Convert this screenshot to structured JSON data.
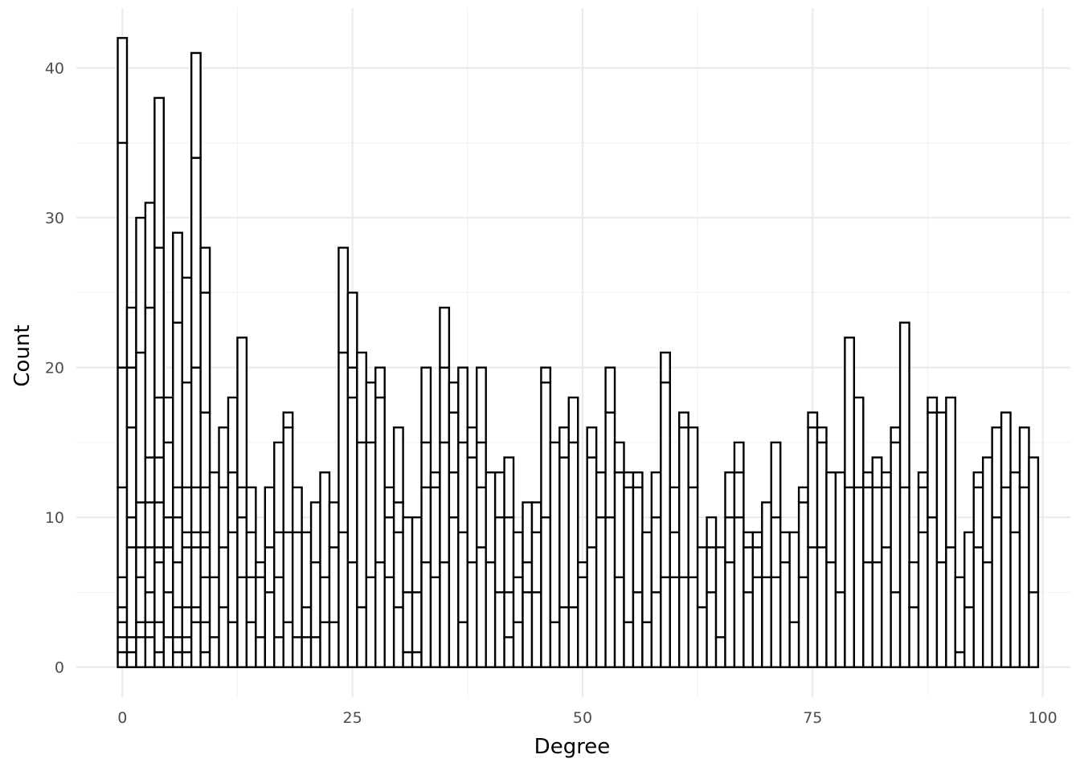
{
  "chart_data": {
    "type": "bar",
    "xlabel": "Degree",
    "ylabel": "Count",
    "xlim": [
      -5,
      103
    ],
    "ylim": [
      -2,
      44
    ],
    "x_ticks": [
      0,
      25,
      50,
      75,
      100
    ],
    "y_ticks": [
      0,
      10,
      20,
      30,
      40
    ],
    "grid": true,
    "bar_fill": "#ffffff",
    "bar_stroke": "#000000",
    "bins": [
      {
        "x": 0,
        "stack": [
          1,
          2,
          3,
          4,
          6,
          12,
          20,
          35,
          42
        ]
      },
      {
        "x": 1,
        "stack": [
          1,
          2,
          8,
          10,
          16,
          20,
          24
        ]
      },
      {
        "x": 2,
        "stack": [
          2,
          3,
          6,
          8,
          11,
          21,
          30
        ]
      },
      {
        "x": 3,
        "stack": [
          2,
          3,
          5,
          8,
          11,
          14,
          24,
          31
        ]
      },
      {
        "x": 4,
        "stack": [
          1,
          3,
          7,
          8,
          11,
          14,
          18,
          28,
          38
        ]
      },
      {
        "x": 5,
        "stack": [
          2,
          5,
          8,
          10,
          15,
          18
        ]
      },
      {
        "x": 6,
        "stack": [
          1,
          2,
          4,
          7,
          10,
          12,
          23,
          29
        ]
      },
      {
        "x": 7,
        "stack": [
          1,
          2,
          4,
          8,
          9,
          12,
          19,
          26
        ]
      },
      {
        "x": 8,
        "stack": [
          3,
          4,
          8,
          9,
          12,
          20,
          34,
          41
        ]
      },
      {
        "x": 9,
        "stack": [
          1,
          3,
          6,
          8,
          9,
          12,
          17,
          25,
          28
        ]
      },
      {
        "x": 10,
        "stack": [
          2,
          6,
          13
        ]
      },
      {
        "x": 11,
        "stack": [
          4,
          8,
          12,
          16
        ]
      },
      {
        "x": 12,
        "stack": [
          3,
          9,
          13,
          18
        ]
      },
      {
        "x": 13,
        "stack": [
          6,
          10,
          12,
          22
        ]
      },
      {
        "x": 14,
        "stack": [
          3,
          6,
          9,
          12
        ]
      },
      {
        "x": 15,
        "stack": [
          2,
          6,
          7
        ]
      },
      {
        "x": 16,
        "stack": [
          5,
          8,
          12
        ]
      },
      {
        "x": 17,
        "stack": [
          2,
          6,
          9,
          15
        ]
      },
      {
        "x": 18,
        "stack": [
          3,
          9,
          16,
          17
        ]
      },
      {
        "x": 19,
        "stack": [
          2,
          9,
          12
        ]
      },
      {
        "x": 20,
        "stack": [
          2,
          4,
          9
        ]
      },
      {
        "x": 21,
        "stack": [
          2,
          7,
          11
        ]
      },
      {
        "x": 22,
        "stack": [
          3,
          6,
          13
        ]
      },
      {
        "x": 23,
        "stack": [
          3,
          8,
          11
        ]
      },
      {
        "x": 24,
        "stack": [
          9,
          21,
          28
        ]
      },
      {
        "x": 25,
        "stack": [
          7,
          18,
          20,
          25
        ]
      },
      {
        "x": 26,
        "stack": [
          4,
          15,
          21
        ]
      },
      {
        "x": 27,
        "stack": [
          6,
          15,
          19
        ]
      },
      {
        "x": 28,
        "stack": [
          7,
          18,
          20
        ]
      },
      {
        "x": 29,
        "stack": [
          6,
          10,
          12
        ]
      },
      {
        "x": 30,
        "stack": [
          4,
          9,
          11,
          16
        ]
      },
      {
        "x": 31,
        "stack": [
          1,
          5,
          10
        ]
      },
      {
        "x": 32,
        "stack": [
          1,
          5,
          10
        ]
      },
      {
        "x": 33,
        "stack": [
          7,
          12,
          15,
          20
        ]
      },
      {
        "x": 34,
        "stack": [
          6,
          12,
          13
        ]
      },
      {
        "x": 35,
        "stack": [
          7,
          15,
          20,
          24
        ]
      },
      {
        "x": 36,
        "stack": [
          10,
          13,
          17,
          19
        ]
      },
      {
        "x": 37,
        "stack": [
          3,
          9,
          15,
          20
        ]
      },
      {
        "x": 38,
        "stack": [
          7,
          14,
          16
        ]
      },
      {
        "x": 39,
        "stack": [
          8,
          12,
          15,
          20
        ]
      },
      {
        "x": 40,
        "stack": [
          7,
          13
        ]
      },
      {
        "x": 41,
        "stack": [
          5,
          10,
          13
        ]
      },
      {
        "x": 42,
        "stack": [
          2,
          5,
          10,
          14
        ]
      },
      {
        "x": 43,
        "stack": [
          3,
          6,
          9
        ]
      },
      {
        "x": 44,
        "stack": [
          5,
          7,
          11
        ]
      },
      {
        "x": 45,
        "stack": [
          5,
          9,
          11
        ]
      },
      {
        "x": 46,
        "stack": [
          10,
          19,
          20
        ]
      },
      {
        "x": 47,
        "stack": [
          3,
          15
        ]
      },
      {
        "x": 48,
        "stack": [
          4,
          14,
          16
        ]
      },
      {
        "x": 49,
        "stack": [
          4,
          15,
          18
        ]
      },
      {
        "x": 50,
        "stack": [
          6,
          7
        ]
      },
      {
        "x": 51,
        "stack": [
          8,
          14,
          16
        ]
      },
      {
        "x": 52,
        "stack": [
          10,
          13
        ]
      },
      {
        "x": 53,
        "stack": [
          10,
          17,
          20
        ]
      },
      {
        "x": 54,
        "stack": [
          6,
          13,
          15
        ]
      },
      {
        "x": 55,
        "stack": [
          3,
          12,
          13
        ]
      },
      {
        "x": 56,
        "stack": [
          5,
          12,
          13
        ]
      },
      {
        "x": 57,
        "stack": [
          3,
          9
        ]
      },
      {
        "x": 58,
        "stack": [
          5,
          10,
          13
        ]
      },
      {
        "x": 59,
        "stack": [
          6,
          19,
          21
        ]
      },
      {
        "x": 60,
        "stack": [
          6,
          9,
          12
        ]
      },
      {
        "x": 61,
        "stack": [
          6,
          16,
          17
        ]
      },
      {
        "x": 62,
        "stack": [
          6,
          12,
          16
        ]
      },
      {
        "x": 63,
        "stack": [
          4,
          8
        ]
      },
      {
        "x": 64,
        "stack": [
          5,
          8,
          10
        ]
      },
      {
        "x": 65,
        "stack": [
          2,
          8
        ]
      },
      {
        "x": 66,
        "stack": [
          7,
          10,
          13
        ]
      },
      {
        "x": 67,
        "stack": [
          10,
          13,
          15
        ]
      },
      {
        "x": 68,
        "stack": [
          5,
          8,
          9
        ]
      },
      {
        "x": 69,
        "stack": [
          6,
          8,
          9
        ]
      },
      {
        "x": 70,
        "stack": [
          6,
          11
        ]
      },
      {
        "x": 71,
        "stack": [
          6,
          10,
          15
        ]
      },
      {
        "x": 72,
        "stack": [
          7,
          9
        ]
      },
      {
        "x": 73,
        "stack": [
          3,
          9
        ]
      },
      {
        "x": 74,
        "stack": [
          6,
          11,
          12
        ]
      },
      {
        "x": 75,
        "stack": [
          8,
          16,
          17
        ]
      },
      {
        "x": 76,
        "stack": [
          8,
          15,
          16
        ]
      },
      {
        "x": 77,
        "stack": [
          7,
          13
        ]
      },
      {
        "x": 78,
        "stack": [
          5,
          13
        ]
      },
      {
        "x": 79,
        "stack": [
          12,
          22
        ]
      },
      {
        "x": 80,
        "stack": [
          12,
          18
        ]
      },
      {
        "x": 81,
        "stack": [
          7,
          12,
          13
        ]
      },
      {
        "x": 82,
        "stack": [
          7,
          12,
          14
        ]
      },
      {
        "x": 83,
        "stack": [
          8,
          12,
          13
        ]
      },
      {
        "x": 84,
        "stack": [
          5,
          15,
          16
        ]
      },
      {
        "x": 85,
        "stack": [
          12,
          23
        ]
      },
      {
        "x": 86,
        "stack": [
          4,
          7
        ]
      },
      {
        "x": 87,
        "stack": [
          9,
          12,
          13
        ]
      },
      {
        "x": 88,
        "stack": [
          10,
          17,
          18
        ]
      },
      {
        "x": 89,
        "stack": [
          7,
          17
        ]
      },
      {
        "x": 90,
        "stack": [
          8,
          18
        ]
      },
      {
        "x": 91,
        "stack": [
          1,
          6
        ]
      },
      {
        "x": 92,
        "stack": [
          4,
          9
        ]
      },
      {
        "x": 93,
        "stack": [
          8,
          12,
          13
        ]
      },
      {
        "x": 94,
        "stack": [
          7,
          14
        ]
      },
      {
        "x": 95,
        "stack": [
          10,
          16
        ]
      },
      {
        "x": 96,
        "stack": [
          12,
          17
        ]
      },
      {
        "x": 97,
        "stack": [
          9,
          13
        ]
      },
      {
        "x": 98,
        "stack": [
          12,
          16
        ]
      },
      {
        "x": 99,
        "stack": [
          5,
          14
        ]
      }
    ]
  }
}
